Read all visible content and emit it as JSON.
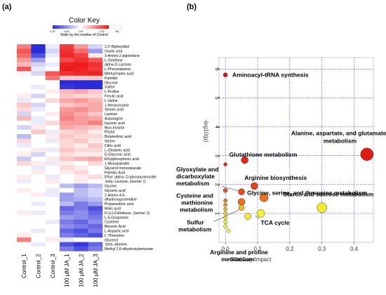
{
  "panel_a_label": "(a)",
  "panel_b_label": "(b)",
  "colors": {
    "heat_low": "#2b2bd9",
    "heat_mid": "#ffffff",
    "heat_high": "#ee1111",
    "na": "#ffffff",
    "grid": "#3333dd",
    "bubble_low": "#ffff33",
    "bubble_high": "#dd1111"
  },
  "color_key": {
    "title": "Color Key",
    "subtitle": "Ratio by the median of Control",
    "ticks": [
      "0.25",
      "0.40",
      "1.00",
      "2.00",
      "NA"
    ]
  },
  "chart_data": [
    {
      "type": "heatmap",
      "title": "",
      "columns": [
        "Control_1",
        "Control_2",
        "Control_3",
        "100 μM JA_1",
        "100 μM JA_2",
        "100 μM JA_3"
      ],
      "rows": [
        "2,2'-Bipheyldiol",
        "Oxalic acid",
        "3-Amino-2-piperidone",
        "L-Ornithine",
        "alpha-D-Lactose",
        "L-Phenylalanine",
        "Methylmaleic acid",
        "Palmitol",
        "Glucose",
        "Xylitol",
        "L-Proline",
        "Ferulic acid",
        "L-Valine",
        "1-Hexacosanol",
        "Stearic acid",
        "Lactose",
        "Asparagine",
        "Itaconic acid",
        "Myo-Inositol",
        "Phytol",
        "Butanedioic acid",
        "Serine",
        "Citric acid",
        "L-Glutamic acid",
        "D-Gluconic acid",
        "Ethylphosphonic acid",
        "1-Monopalmitin",
        "Glycerol monostearate",
        "Palmitic Acid",
        "Ethyl .alpha.-D-glucopyranoside",
        ".beta.-Lactose, (isomer 1)",
        "Glycine",
        "Glyceric acid",
        "2-Amino-4,6-",
        "dihydroxypyrimidine",
        "Propanedioic acid",
        "Malic acid",
        "D-(+)-Cellobiose, (isomer 1)",
        "L-5-Oxoproline",
        "Cysteine",
        "Benzoic Acid",
        "L-Aspartic acid",
        "L-Threonine",
        "Glycerol",
        ".beta.-Alanine",
        "Methyl 2,6-dihydroxybenzoate"
      ],
      "values": [
        [
          1.8,
          0.25,
          0.9,
          2.5,
          1.6,
          0.8
        ],
        [
          2.2,
          0.3,
          0.8,
          2.6,
          2.0,
          0.6
        ],
        [
          2.0,
          0.4,
          0.9,
          2.7,
          2.4,
          1.1
        ],
        [
          1.6,
          0.6,
          1.0,
          2.3,
          2.6,
          2.2
        ],
        [
          1.4,
          0.8,
          0.9,
          2.8,
          2.9,
          2.6
        ],
        [
          2.2,
          0.9,
          1.0,
          2.9,
          2.8,
          2.5
        ],
        [
          0.95,
          0.8,
          2.2,
          2.6,
          2.7,
          2.8
        ],
        [
          1.0,
          1.0,
          1.9,
          1.3,
          1.3,
          1.3
        ],
        [
          1.0,
          1.0,
          1.0,
          0.3,
          0.25,
          0.3
        ],
        [
          1.0,
          0.9,
          1.0,
          0.35,
          0.3,
          0.3
        ],
        [
          1.0,
          1.0,
          1.1,
          1.4,
          1.5,
          1.3
        ],
        [
          1.1,
          0.8,
          1.0,
          1.3,
          1.2,
          1.2
        ],
        [
          0.9,
          1.0,
          1.2,
          1.5,
          1.6,
          1.4
        ],
        [
          1.3,
          0.8,
          1.0,
          1.3,
          1.4,
          1.5
        ],
        [
          1.2,
          0.9,
          1.0,
          1.6,
          1.7,
          1.5
        ],
        [
          0.8,
          1.0,
          1.1,
          1.7,
          1.5,
          1.3
        ],
        [
          1.4,
          0.9,
          1.0,
          1.8,
          1.6,
          1.5
        ],
        [
          1.0,
          0.9,
          1.2,
          1.6,
          1.6,
          1.8
        ],
        [
          0.8,
          1.1,
          1.0,
          1.5,
          1.4,
          1.3
        ],
        [
          1.0,
          1.3,
          0.9,
          1.2,
          1.3,
          1.1
        ],
        [
          0.7,
          1.0,
          1.1,
          1.3,
          1.2,
          1.2
        ],
        [
          1.2,
          1.0,
          0.9,
          1.2,
          1.3,
          1.1
        ],
        [
          0.9,
          1.0,
          1.0,
          1.2,
          1.1,
          1.3
        ],
        [
          1.0,
          1.1,
          0.9,
          1.3,
          1.2,
          1.2
        ],
        [
          1.1,
          0.8,
          1.0,
          1.2,
          1.1,
          1.1
        ],
        [
          0.75,
          1.0,
          1.1,
          1.3,
          1.4,
          1.5
        ],
        [
          1.2,
          1.1,
          0.9,
          1.1,
          1.0,
          1.2
        ],
        [
          1.0,
          0.9,
          1.0,
          1.2,
          1.1,
          1.0
        ],
        [
          1.0,
          1.1,
          1.0,
          1.1,
          1.2,
          1.0
        ],
        [
          1.1,
          1.0,
          0.9,
          1.0,
          1.1,
          1.2
        ],
        [
          0.9,
          1.0,
          1.1,
          1.0,
          1.1,
          1.0
        ],
        [
          1.0,
          1.0,
          1.0,
          0.7,
          0.6,
          0.7
        ],
        [
          1.1,
          1.0,
          0.9,
          1.0,
          0.7,
          0.8
        ],
        [
          1.0,
          1.1,
          0.9,
          0.6,
          0.7,
          0.8
        ],
        [
          1.0,
          1.0,
          1.0,
          0.6,
          0.65,
          0.7
        ],
        [
          1.0,
          0.9,
          1.0,
          0.7,
          0.5,
          0.6
        ],
        [
          1.0,
          1.0,
          1.0,
          0.45,
          0.5,
          0.4
        ],
        [
          1.1,
          0.9,
          1.0,
          0.5,
          0.55,
          0.45
        ],
        [
          1.0,
          1.0,
          1.0,
          0.6,
          0.55,
          0.5
        ],
        [
          1.0,
          1.0,
          0.9,
          0.5,
          0.45,
          0.55
        ],
        [
          1.0,
          1.0,
          1.0,
          0.55,
          0.5,
          0.45
        ],
        [
          1.0,
          0.9,
          1.0,
          0.45,
          0.4,
          0.5
        ],
        [
          1.1,
          1.0,
          1.0,
          0.5,
          0.45,
          0.4
        ],
        [
          1.8,
          1.0,
          1.1,
          0.9,
          1.0,
          1.0
        ],
        [
          1.0,
          0.9,
          1.0,
          0.4,
          0.35,
          0.45
        ],
        [
          1.0,
          1.0,
          1.0,
          0.5,
          0.4,
          0.5
        ]
      ]
    },
    {
      "type": "scatter",
      "title": "",
      "xlabel": "Pathway Impact",
      "ylabel": "-log10(p)",
      "xlim": [
        -0.02,
        0.46
      ],
      "ylim": [
        0,
        6.4
      ],
      "xticks": [
        "0.0",
        "0.1",
        "0.2",
        "0.3",
        "0.4"
      ],
      "yticks": [
        "1",
        "2",
        "3",
        "4",
        "5",
        "6"
      ],
      "grid": true,
      "points": [
        {
          "label": "Aminoacyl-tRNA synthesis",
          "x": 0.0,
          "y": 5.8,
          "size": 3,
          "color": 1.0
        },
        {
          "label": "Alanine, aspartate, and glutamate metabolism",
          "x": 0.44,
          "y": 3.05,
          "size": 9,
          "color": 0.95
        },
        {
          "label": "Glutathione metabolism",
          "x": 0.06,
          "y": 2.85,
          "size": 5,
          "color": 0.9
        },
        {
          "label": "",
          "x": 0.0,
          "y": 2.7,
          "size": 2.5,
          "color": 0.9
        },
        {
          "label": "Arginine biosynthesis",
          "x": 0.09,
          "y": 1.95,
          "size": 5,
          "color": 0.8
        },
        {
          "label": "Glyoxylate and dicarboxylate metabolism",
          "x": 0.05,
          "y": 1.75,
          "size": 4.5,
          "color": 0.75
        },
        {
          "label": "Glycine, serine, and threonine metabolism",
          "x": 0.12,
          "y": 1.55,
          "size": 6,
          "color": 0.6
        },
        {
          "label": "",
          "x": 0.0,
          "y": 1.8,
          "size": 3,
          "color": 0.7
        },
        {
          "label": "Cysteine and methionine metabolism",
          "x": 0.05,
          "y": 1.4,
          "size": 5,
          "color": 0.6
        },
        {
          "label": "Starch and sucrose metabolism",
          "x": 0.3,
          "y": 1.2,
          "size": 7,
          "color": 0.1
        },
        {
          "label": "",
          "x": 0.0,
          "y": 1.45,
          "size": 2.5,
          "color": 0.55
        },
        {
          "label": "",
          "x": 0.0,
          "y": 1.3,
          "size": 2.5,
          "color": 0.45
        },
        {
          "label": "",
          "x": 0.0,
          "y": 1.15,
          "size": 2.5,
          "color": 0.3
        },
        {
          "label": "Sulfur metabolism",
          "x": 0.05,
          "y": 1.2,
          "size": 4,
          "color": 0.3
        },
        {
          "label": "TCA cycle",
          "x": 0.11,
          "y": 1.0,
          "size": 5.5,
          "color": 0.05
        },
        {
          "label": "",
          "x": 0.0,
          "y": 1.0,
          "size": 2.5,
          "color": 0.2
        },
        {
          "label": "Arginine and proline metabolism",
          "x": 0.07,
          "y": 0.9,
          "size": 4.5,
          "color": 0.1
        },
        {
          "label": "",
          "x": 0.0,
          "y": 0.85,
          "size": 2.5,
          "color": 0.1
        },
        {
          "label": "",
          "x": 0.0,
          "y": 0.7,
          "size": 2.5,
          "color": 0.05
        },
        {
          "label": "",
          "x": 0.0,
          "y": 0.55,
          "size": 2.5,
          "color": 0.0
        },
        {
          "label": "",
          "x": 0.01,
          "y": 0.4,
          "size": 2.5,
          "color": 0.0
        }
      ]
    }
  ]
}
